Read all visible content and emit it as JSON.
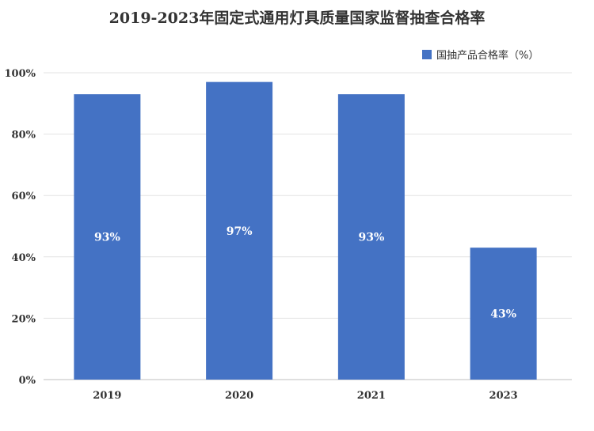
{
  "chart_data": {
    "type": "bar",
    "title": "2019-2023年固定式通用灯具质量国家监督抽查合格率",
    "categories": [
      "2019",
      "2020",
      "2021",
      "2023"
    ],
    "series": [
      {
        "name": "国抽产品合格率（%）",
        "values": [
          93,
          97,
          93,
          43
        ]
      }
    ],
    "data_labels": [
      "93%",
      "97%",
      "93%",
      "43%"
    ],
    "ylim": [
      0,
      100
    ],
    "yticks": [
      "0%",
      "20%",
      "40%",
      "60%",
      "80%",
      "100%"
    ],
    "grid": true,
    "legend": "top-right",
    "colors": {
      "bar": "#4472C4",
      "grid": "#E3E3E3",
      "axis": "#BFBFBF",
      "text": "#333333",
      "label": "#ffffff"
    }
  }
}
